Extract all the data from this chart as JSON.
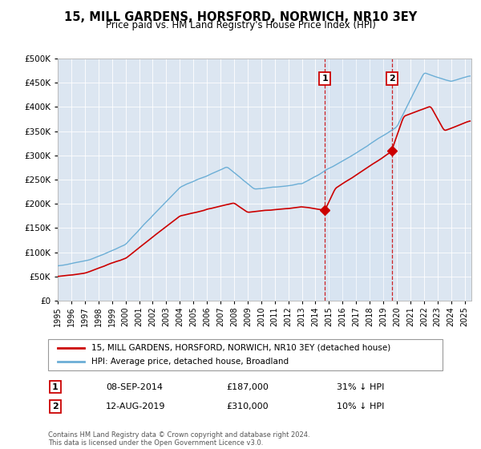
{
  "title": "15, MILL GARDENS, HORSFORD, NORWICH, NR10 3EY",
  "subtitle": "Price paid vs. HM Land Registry's House Price Index (HPI)",
  "legend_label_red": "15, MILL GARDENS, HORSFORD, NORWICH, NR10 3EY (detached house)",
  "legend_label_blue": "HPI: Average price, detached house, Broadland",
  "annotation1_date": "08-SEP-2014",
  "annotation1_price": "£187,000",
  "annotation1_text": "31% ↓ HPI",
  "annotation2_date": "12-AUG-2019",
  "annotation2_price": "£310,000",
  "annotation2_text": "10% ↓ HPI",
  "footer": "Contains HM Land Registry data © Crown copyright and database right 2024.\nThis data is licensed under the Open Government Licence v3.0.",
  "sale1_year": 2014.69,
  "sale1_value": 187000,
  "sale2_year": 2019.62,
  "sale2_value": 310000,
  "hpi_color": "#6baed6",
  "price_color": "#cc0000",
  "background_plot": "#dce6f1",
  "ylim": [
    0,
    500000
  ],
  "xlim_start": 1995,
  "xlim_end": 2025.5
}
